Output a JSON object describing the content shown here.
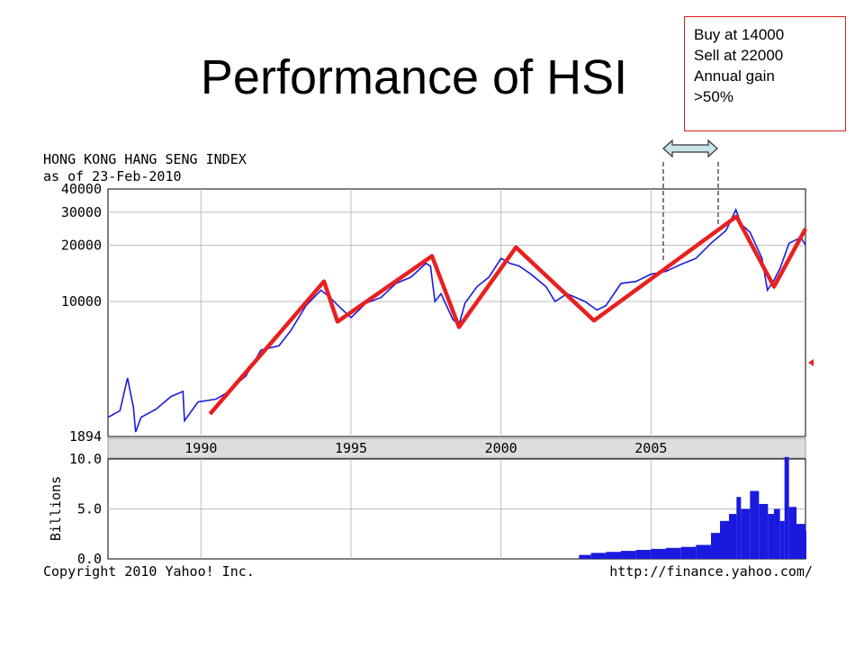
{
  "slide": {
    "title": "Performance of HSI"
  },
  "callout": {
    "line1": "Buy at 14000",
    "line2": "Sell at 22000",
    "line3": "Annual gain",
    "line4": ">50%"
  },
  "chart_data": {
    "type": "line",
    "title": "HONG KONG HANG SENG INDEX",
    "subtitle": "as of 23-Feb-2010",
    "y_scale": "log",
    "ylim": [
      1894,
      40000
    ],
    "y_ticks": [
      "40000",
      "30000",
      "20000",
      "10000",
      "1894"
    ],
    "y_tick_values": [
      40000,
      30000,
      20000,
      10000,
      1894
    ],
    "xlim": [
      1986.9,
      2010.15
    ],
    "x_ticks": [
      "1990",
      "1995",
      "2000",
      "2005"
    ],
    "x_tick_values": [
      1990,
      1995,
      2000,
      2005
    ],
    "grid": true,
    "series": [
      {
        "color": "#1a1adf",
        "x": [
          1986.9,
          1987.3,
          1987.55,
          1987.75,
          1987.82,
          1988.0,
          1988.5,
          1989.0,
          1989.4,
          1989.45,
          1989.9,
          1990.5,
          1990.8,
          1991.5,
          1992.0,
          1992.6,
          1993.0,
          1993.5,
          1994.0,
          1994.3,
          1994.6,
          1995.0,
          1995.5,
          1996.0,
          1996.5,
          1997.0,
          1997.5,
          1997.65,
          1997.8,
          1998.0,
          1998.4,
          1998.6,
          1998.8,
          1999.2,
          1999.6,
          2000.0,
          2000.3,
          2000.6,
          2001.0,
          2001.5,
          2001.8,
          2002.2,
          2002.8,
          2003.2,
          2003.5,
          2004.0,
          2004.5,
          2005.0,
          2005.5,
          2006.0,
          2006.5,
          2007.0,
          2007.5,
          2007.83,
          2008.0,
          2008.3,
          2008.7,
          2008.88,
          2009.1,
          2009.3,
          2009.6,
          2010.0,
          2010.15
        ],
        "values": [
          2400,
          2600,
          3900,
          2700,
          2000,
          2400,
          2650,
          3100,
          3300,
          2300,
          2900,
          3000,
          3200,
          4000,
          5500,
          5800,
          7000,
          9500,
          11500,
          10500,
          9400,
          8200,
          9800,
          10500,
          12500,
          13500,
          16000,
          15500,
          10000,
          11000,
          8000,
          7500,
          9800,
          12000,
          13500,
          17000,
          16000,
          15500,
          14000,
          12000,
          10000,
          11000,
          10000,
          9000,
          9500,
          12500,
          12800,
          14000,
          14500,
          15800,
          17000,
          20500,
          24000,
          31000,
          26000,
          23500,
          17000,
          11500,
          13000,
          15000,
          20500,
          22000,
          20000
        ]
      }
    ],
    "overlay_trend": {
      "color": "#e82020",
      "x": [
        1990.3,
        1994.1,
        1994.55,
        1997.7,
        1998.6,
        2000.5,
        2003.1,
        2007.85,
        2009.1,
        2010.15
      ],
      "values": [
        2500,
        12800,
        7800,
        17500,
        7300,
        19500,
        7900,
        28500,
        12000,
        24500
      ]
    },
    "volume": {
      "ylabel": "Billions",
      "ylim": [
        0,
        10
      ],
      "y_ticks": [
        "10.0",
        "5.0",
        "0.0"
      ],
      "y_tick_values": [
        10,
        5,
        0
      ],
      "color": "#1a1adf",
      "x": [
        2002.6,
        2003.0,
        2003.5,
        2004.0,
        2004.5,
        2005.0,
        2005.5,
        2006.0,
        2006.5,
        2007.0,
        2007.3,
        2007.6,
        2007.85,
        2008.0,
        2008.3,
        2008.6,
        2008.9,
        2009.1,
        2009.3,
        2009.45,
        2009.6,
        2009.85,
        2010.15
      ],
      "values": [
        0.4,
        0.6,
        0.7,
        0.8,
        0.9,
        1.0,
        1.1,
        1.2,
        1.4,
        2.6,
        3.8,
        4.5,
        6.2,
        5.0,
        6.8,
        5.5,
        4.5,
        5.0,
        3.8,
        10.2,
        5.2,
        3.5,
        2.8
      ]
    },
    "footer_left": "Copyright 2010 Yahoo! Inc.",
    "footer_right": "http://finance.yahoo.com/"
  }
}
